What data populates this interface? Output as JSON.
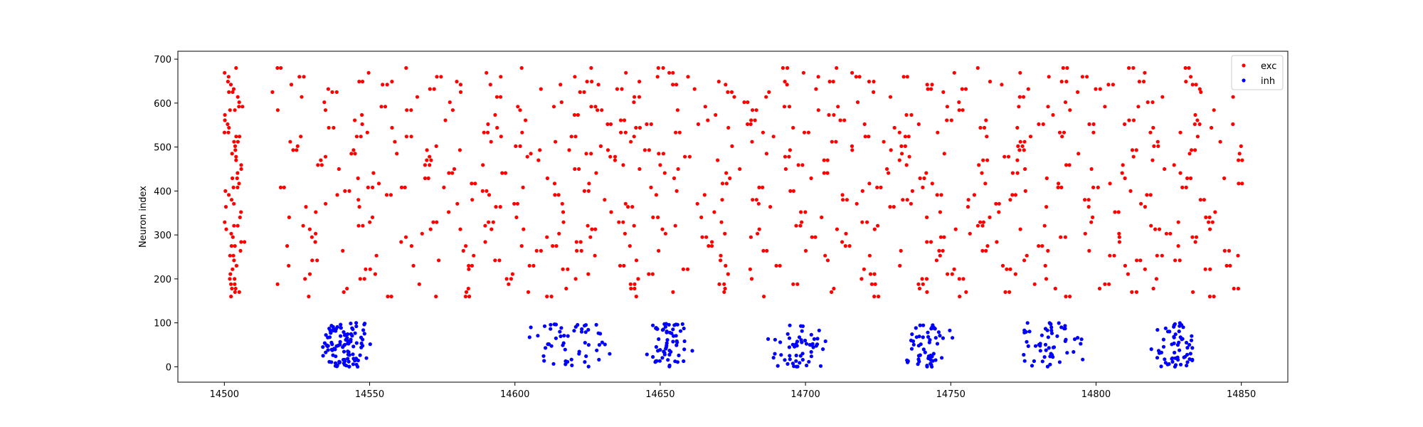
{
  "chart_data": {
    "type": "scatter",
    "title": "",
    "xlabel": "",
    "ylabel": "Neuron index",
    "xlim": [
      14484,
      14866
    ],
    "ylim": [
      -35,
      718
    ],
    "xticks": [
      14500,
      14550,
      14600,
      14650,
      14700,
      14750,
      14800,
      14850
    ],
    "yticks": [
      0,
      100,
      200,
      300,
      400,
      500,
      600,
      700
    ],
    "grid": false,
    "legend_position": "top-right",
    "exc_neuron_range": [
      160,
      684
    ],
    "time_range": [
      14500,
      14850
    ],
    "series": [
      {
        "name": "exc",
        "color": "#ff0000",
        "description": "dense irregular spiking across neurons 160-684 throughout 14500-14850"
      },
      {
        "name": "inh",
        "color": "#0000ff",
        "bursts": [
          {
            "center": 14541,
            "spread": 4,
            "count": 110
          },
          {
            "center": 14618,
            "spread": 6,
            "count": 55
          },
          {
            "center": 14652,
            "spread": 4,
            "count": 60
          },
          {
            "center": 14697,
            "spread": 5,
            "count": 55
          },
          {
            "center": 14742,
            "spread": 4,
            "count": 55
          },
          {
            "center": 14784,
            "spread": 5,
            "count": 55
          },
          {
            "center": 14828,
            "spread": 4,
            "count": 60
          }
        ],
        "neuron_range": [
          0,
          100
        ]
      }
    ]
  }
}
